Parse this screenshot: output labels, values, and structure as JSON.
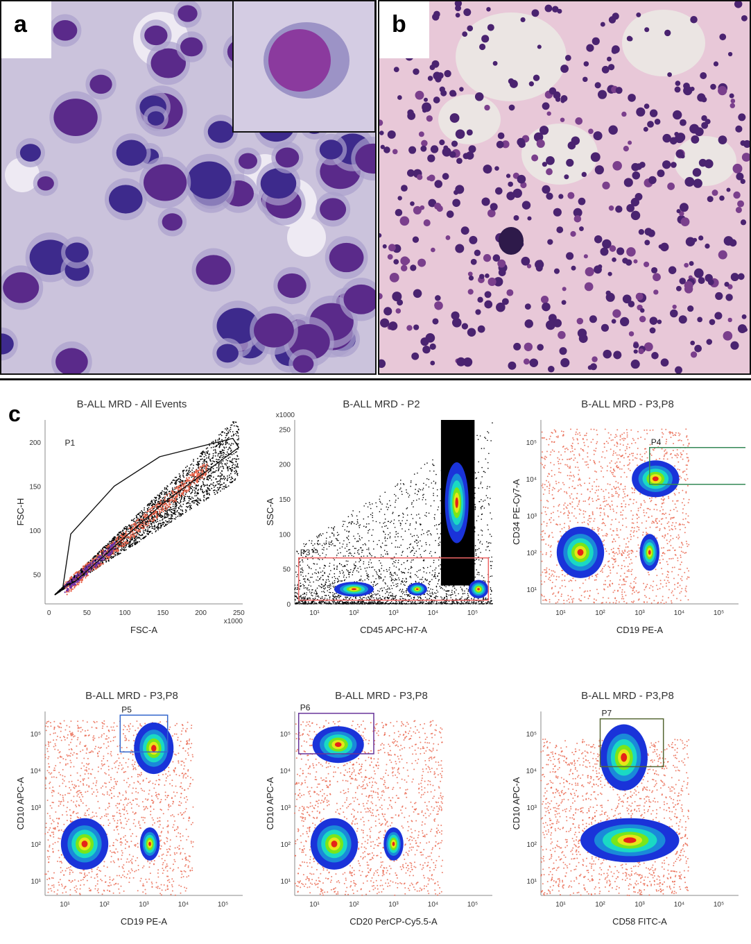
{
  "panels": {
    "a": {
      "label": "a"
    },
    "b": {
      "label": "b"
    },
    "c": {
      "label": "c"
    }
  },
  "colors": {
    "wright_bg": "#cbc3dc",
    "wright_nucleus": "#5a2a8a",
    "he_bg": "#e8c8d8",
    "he_nucleus": "#4a2370",
    "density_low": "#1a33d9",
    "density_mid": "#1ad9c4",
    "density_high": "#e6e619",
    "density_peak": "#e62319",
    "background_events": "#e8634a"
  },
  "chart_data": [
    {
      "type": "scatter",
      "title": "B-ALL MRD - All Events",
      "xlabel": "FSC-A",
      "ylabel": "FSC-H",
      "x_scale": "linear",
      "x_multiplier": "x1000",
      "xticks": [
        "0",
        "50",
        "100",
        "150",
        "200",
        "250"
      ],
      "yticks": [
        "50",
        "100",
        "150",
        "200"
      ],
      "gates": [
        {
          "name": "P1"
        }
      ]
    },
    {
      "type": "scatter",
      "title": "B-ALL MRD - P2",
      "xlabel": "CD45 APC-H7-A",
      "ylabel": "SSC-A",
      "y_multiplier": "x1000",
      "xticks": [
        "10¹",
        "10²",
        "10³",
        "10⁴",
        "10⁵"
      ],
      "yticks": [
        "0",
        "50",
        "100",
        "150",
        "200",
        "250"
      ],
      "gates": [
        {
          "name": "P3"
        }
      ]
    },
    {
      "type": "scatter",
      "title": "B-ALL MRD - P3,P8",
      "xlabel": "CD19 PE-A",
      "ylabel": "CD34 PE-Cy7-A",
      "xticks": [
        "10¹",
        "10²",
        "10³",
        "10⁴",
        "10⁵"
      ],
      "yticks": [
        "10¹",
        "10²",
        "10³",
        "10⁴",
        "10⁵"
      ],
      "gates": [
        {
          "name": "P4"
        }
      ]
    },
    {
      "type": "scatter",
      "title": "B-ALL MRD - P3,P8",
      "xlabel": "CD19 PE-A",
      "ylabel": "CD10 APC-A",
      "xticks": [
        "10¹",
        "10²",
        "10³",
        "10⁴",
        "10⁵"
      ],
      "yticks": [
        "10¹",
        "10²",
        "10³",
        "10⁴",
        "10⁵"
      ],
      "gates": [
        {
          "name": "P5"
        }
      ]
    },
    {
      "type": "scatter",
      "title": "B-ALL MRD - P3,P8",
      "xlabel": "CD20 PerCP-Cy5.5-A",
      "ylabel": "CD10 APC-A",
      "xticks": [
        "10¹",
        "10²",
        "10³",
        "10⁴",
        "10⁵"
      ],
      "yticks": [
        "10¹",
        "10²",
        "10³",
        "10⁴",
        "10⁵"
      ],
      "gates": [
        {
          "name": "P6"
        }
      ]
    },
    {
      "type": "scatter",
      "title": "B-ALL MRD - P3,P8",
      "xlabel": "CD58 FITC-A",
      "ylabel": "CD10 APC-A",
      "xticks": [
        "10¹",
        "10²",
        "10³",
        "10⁴",
        "10⁵"
      ],
      "yticks": [
        "10¹",
        "10²",
        "10³",
        "10⁴",
        "10⁵"
      ],
      "gates": [
        {
          "name": "P7"
        }
      ]
    }
  ]
}
